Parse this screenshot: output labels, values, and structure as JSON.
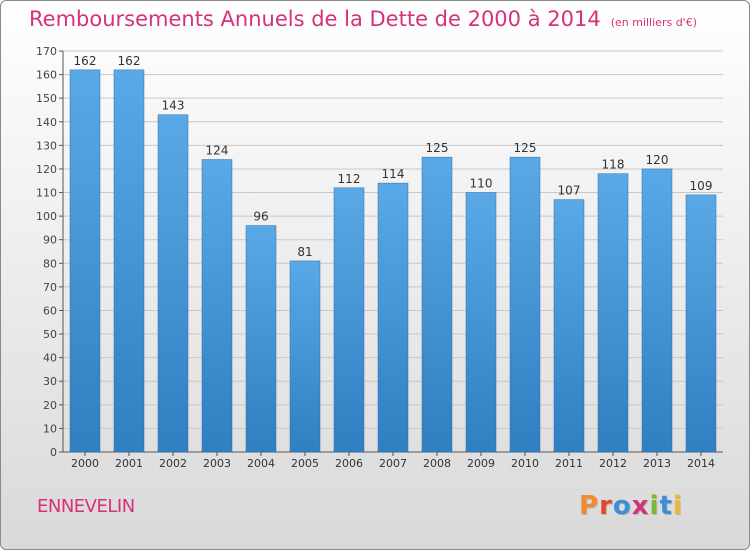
{
  "header": {
    "title": "Remboursements Annuels de la Dette de 2000 à 2014",
    "unit": "(en milliers d'€)"
  },
  "footer": {
    "commune": "ENNEVELIN",
    "logo": "Proxiti",
    "logo_colors": [
      "#f08c2c",
      "#e8452c",
      "#3b8fd9",
      "#d6317b",
      "#79b93a",
      "#3b8fd9",
      "#f0b82c"
    ]
  },
  "colors": {
    "title": "#d6317b",
    "bar_top": "#5aa9e6",
    "bar_bottom": "#2f7fc1",
    "grid": "#c8c8c8"
  },
  "chart_data": {
    "type": "bar",
    "title": "Remboursements Annuels de la Dette de 2000 à 2014",
    "subtitle": "(en milliers d'€)",
    "categories": [
      "2000",
      "2001",
      "2002",
      "2003",
      "2004",
      "2005",
      "2006",
      "2007",
      "2008",
      "2009",
      "2010",
      "2011",
      "2012",
      "2013",
      "2014"
    ],
    "values": [
      162,
      162,
      143,
      124,
      96,
      81,
      112,
      114,
      125,
      110,
      125,
      107,
      118,
      120,
      109
    ],
    "ylim": [
      0,
      170
    ],
    "yticks": [
      0,
      10,
      20,
      30,
      40,
      50,
      60,
      70,
      80,
      90,
      100,
      110,
      120,
      130,
      140,
      150,
      160,
      170
    ],
    "grid": true,
    "xlabel": "",
    "ylabel": ""
  }
}
